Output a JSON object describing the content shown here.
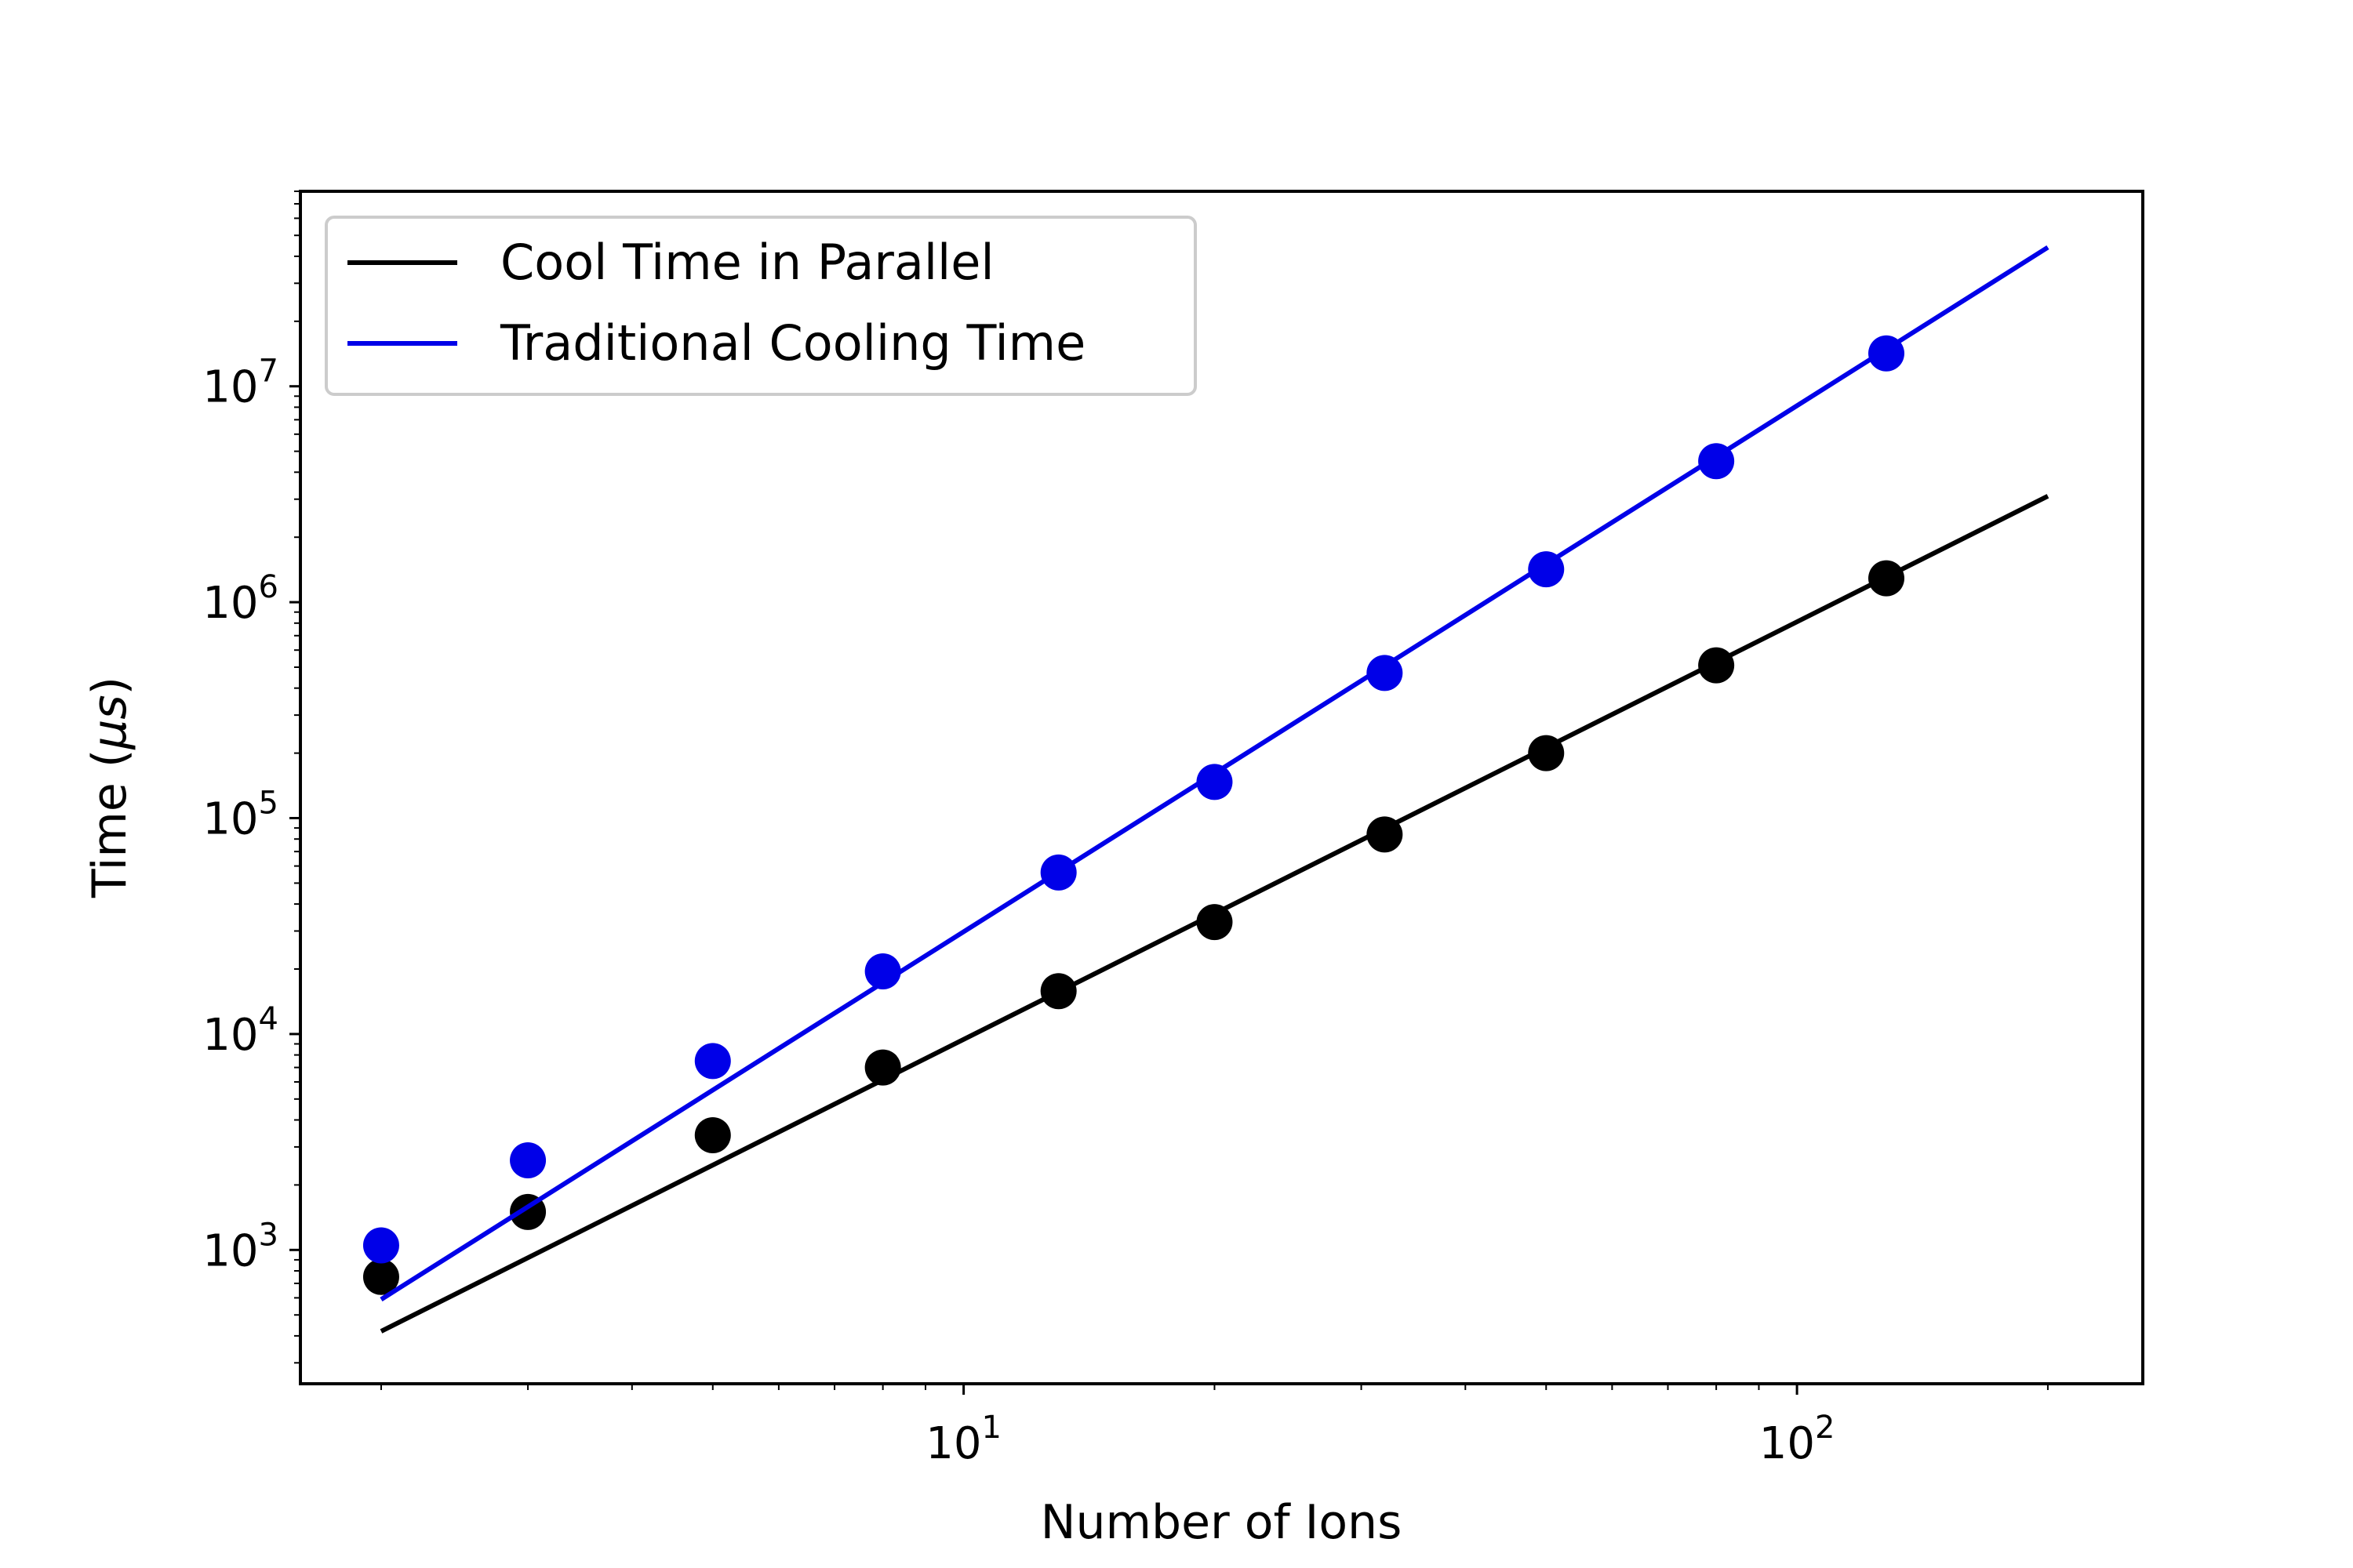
{
  "chart_data": {
    "type": "scatter",
    "title": "",
    "xlabel": "Number of Ions",
    "ylabel_prefix": "Time (",
    "ylabel_unit": "μs",
    "ylabel_suffix": ")",
    "xscale": "log",
    "yscale": "log",
    "xlim": [
      1.6,
      260
    ],
    "ylim": [
      240,
      80000000
    ],
    "x_tick_base": "10",
    "x_ticks": [
      {
        "value": 10,
        "exponent": "1"
      },
      {
        "value": 100,
        "exponent": "2"
      }
    ],
    "y_tick_base": "10",
    "y_ticks": [
      {
        "value": 1000,
        "exponent": "3"
      },
      {
        "value": 10000,
        "exponent": "4"
      },
      {
        "value": 100000,
        "exponent": "5"
      },
      {
        "value": 1000000,
        "exponent": "6"
      },
      {
        "value": 10000000,
        "exponent": "7"
      }
    ],
    "grid": false,
    "legend_position": "top-left",
    "series": [
      {
        "name": "Cool Time in Parallel",
        "color": "#000000",
        "x": [
          2,
          3,
          5,
          8,
          13,
          20,
          32,
          50,
          80,
          128
        ],
        "y": [
          750,
          1500,
          3400,
          7000,
          15800,
          33000,
          84000,
          200000,
          510000,
          1290000
        ],
        "fit_x": [
          2,
          200
        ],
        "fit_y": [
          420,
          3100000
        ]
      },
      {
        "name": "Traditional Cooling Time",
        "color": "#0000e8",
        "x": [
          2,
          3,
          5,
          8,
          13,
          20,
          32,
          50,
          80,
          128
        ],
        "y": [
          1050,
          2600,
          7500,
          19500,
          56000,
          147000,
          470000,
          1420000,
          4500000,
          14200000
        ],
        "fit_x": [
          2,
          200
        ],
        "fit_y": [
          590,
          44000000
        ]
      }
    ]
  }
}
